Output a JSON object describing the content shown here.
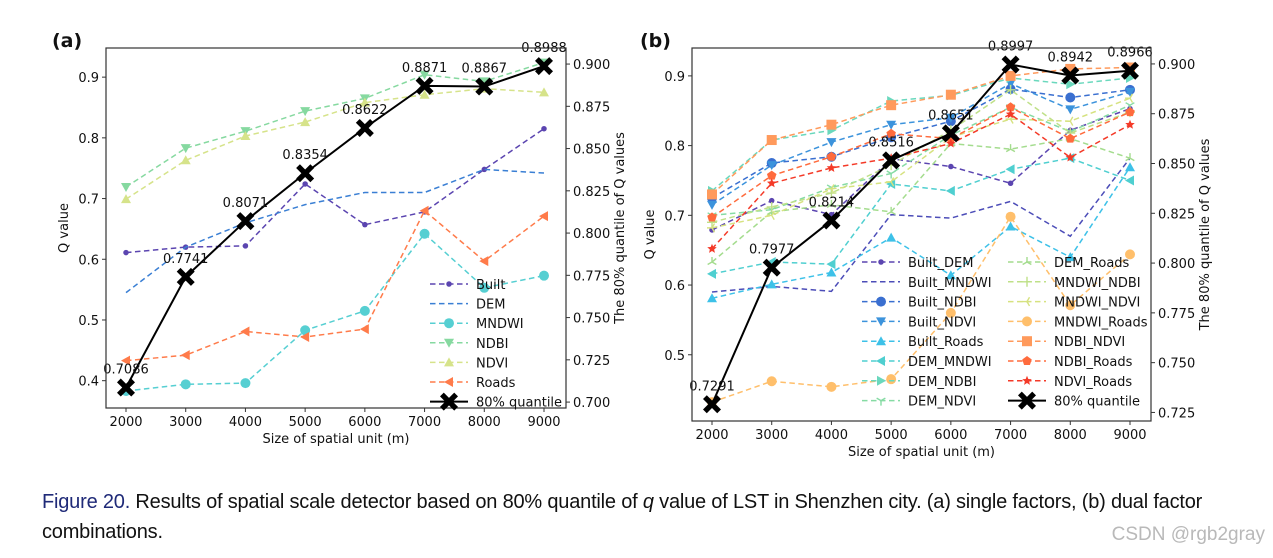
{
  "figure": {
    "caption_label": "Figure 20.",
    "caption_pre": " Results of spatial scale detector based on 80% quantile of ",
    "caption_italic": "q",
    "caption_post": " value of LST in Shenzhen city. (a) single factors, (b) dual factor combinations.",
    "watermark": "CSDN @rgb2gray"
  },
  "chart_data": [
    {
      "type": "line",
      "panel": "(a)",
      "title": "",
      "xlabel": "Size of spatial unit (m)",
      "ylabel": "Q value",
      "y2label": "The 80% quantile of Q values",
      "x": [
        2000,
        3000,
        4000,
        5000,
        6000,
        7000,
        8000,
        9000
      ],
      "xticks": [
        "2000",
        "3000",
        "4000",
        "5000",
        "6000",
        "7000",
        "8000",
        "9000"
      ],
      "ylim": [
        0.355,
        0.948
      ],
      "yticks": [
        "0.4",
        "0.5",
        "0.6",
        "0.7",
        "0.8",
        "0.9"
      ],
      "y2lim": [
        0.6965,
        0.9095
      ],
      "y2ticks": [
        "0.700",
        "0.725",
        "0.750",
        "0.775",
        "0.800",
        "0.825",
        "0.850",
        "0.875",
        "0.900"
      ],
      "legend_position": "lower-right",
      "legend_columns": 1,
      "grid": false,
      "series": [
        {
          "name": "Built",
          "color": "#5b45b0",
          "marker": "dot",
          "dash": "dashed",
          "values": [
            0.611,
            0.62,
            0.622,
            0.724,
            0.657,
            0.678,
            0.748,
            0.815
          ]
        },
        {
          "name": "DEM",
          "color": "#3a7fd4",
          "marker": "none",
          "dash": "dashed",
          "values": [
            0.545,
            0.62,
            0.66,
            0.69,
            0.71,
            0.71,
            0.748,
            0.742
          ]
        },
        {
          "name": "MNDWI",
          "color": "#56cfd2",
          "marker": "circle",
          "dash": "dashed",
          "values": [
            0.383,
            0.394,
            0.396,
            0.483,
            0.515,
            0.642,
            0.553,
            0.573
          ]
        },
        {
          "name": "NDBI",
          "color": "#86d9a0",
          "marker": "triangle-down",
          "dash": "dashed",
          "values": [
            0.719,
            0.783,
            0.811,
            0.844,
            0.865,
            0.904,
            0.893,
            0.924
          ]
        },
        {
          "name": "NDVI",
          "color": "#d6e38a",
          "marker": "triangle-up",
          "dash": "dashed",
          "values": [
            0.699,
            0.763,
            0.803,
            0.826,
            0.858,
            0.871,
            0.881,
            0.875
          ]
        },
        {
          "name": "Roads",
          "color": "#ff7b4a",
          "marker": "triangle-left",
          "dash": "dashed",
          "values": [
            0.433,
            0.442,
            0.481,
            0.472,
            0.485,
            0.68,
            0.597,
            0.671
          ]
        }
      ],
      "quantile": {
        "name": "80% quantile",
        "color": "#000000",
        "marker": "x-filled",
        "axis": "right",
        "values": [
          0.7086,
          0.7741,
          0.8071,
          0.8354,
          0.8622,
          0.8871,
          0.8867,
          0.8988
        ],
        "labels": [
          "0.7086",
          "0.7741",
          "0.8071",
          "0.8354",
          "0.8622",
          "0.8871",
          "0.8867",
          "0.8988"
        ]
      }
    },
    {
      "type": "line",
      "panel": "(b)",
      "title": "",
      "xlabel": "Size of spatial unit (m)",
      "ylabel": "Q value",
      "y2label": "The 80% quantile of Q values",
      "x": [
        2000,
        3000,
        4000,
        5000,
        6000,
        7000,
        8000,
        9000
      ],
      "xticks": [
        "2000",
        "3000",
        "4000",
        "5000",
        "6000",
        "7000",
        "8000",
        "9000"
      ],
      "ylim": [
        0.405,
        0.94
      ],
      "yticks": [
        "0.5",
        "0.6",
        "0.7",
        "0.8",
        "0.9"
      ],
      "y2lim": [
        0.7207,
        0.908
      ],
      "y2ticks": [
        "0.725",
        "0.750",
        "0.775",
        "0.800",
        "0.825",
        "0.850",
        "0.875",
        "0.900"
      ],
      "legend_position": "lower-right",
      "legend_columns": 2,
      "grid": false,
      "series": [
        {
          "name": "Built_DEM",
          "color": "#5b45b0",
          "marker": "dot",
          "dash": "dashed",
          "values": [
            0.679,
            0.721,
            0.701,
            0.781,
            0.77,
            0.746,
            0.822,
            0.853
          ]
        },
        {
          "name": "Built_MNDWI",
          "color": "#4c4db8",
          "marker": "none",
          "dash": "dashed",
          "values": [
            0.59,
            0.598,
            0.591,
            0.701,
            0.696,
            0.72,
            0.67,
            0.782
          ]
        },
        {
          "name": "Built_NDBI",
          "color": "#3a6fd0",
          "marker": "circle",
          "dash": "dashed",
          "values": [
            0.725,
            0.775,
            0.784,
            0.812,
            0.835,
            0.881,
            0.869,
            0.88
          ]
        },
        {
          "name": "Built_NDVI",
          "color": "#3c93dc",
          "marker": "triangle-down",
          "dash": "dashed",
          "values": [
            0.715,
            0.772,
            0.805,
            0.83,
            0.84,
            0.889,
            0.852,
            0.877
          ]
        },
        {
          "name": "Built_Roads",
          "color": "#3dc1e8",
          "marker": "triangle-up",
          "dash": "dashed",
          "values": [
            0.581,
            0.601,
            0.618,
            0.668,
            0.614,
            0.684,
            0.64,
            0.769
          ]
        },
        {
          "name": "DEM_MNDWI",
          "color": "#4fcfd0",
          "marker": "triangle-left",
          "dash": "dashed",
          "values": [
            0.616,
            0.633,
            0.63,
            0.745,
            0.735,
            0.766,
            0.782,
            0.75
          ]
        },
        {
          "name": "DEM_NDBI",
          "color": "#6ad8bd",
          "marker": "triangle-right",
          "dash": "dashed",
          "values": [
            0.735,
            0.808,
            0.822,
            0.864,
            0.872,
            0.897,
            0.888,
            0.897
          ]
        },
        {
          "name": "DEM_NDVI",
          "color": "#86dba4",
          "marker": "tri-down",
          "dash": "dashed",
          "values": [
            0.7,
            0.708,
            0.74,
            0.76,
            0.815,
            0.855,
            0.82,
            0.858
          ]
        },
        {
          "name": "DEM_Roads",
          "color": "#a4dc8e",
          "marker": "tri-up",
          "dash": "dashed",
          "values": [
            0.633,
            0.705,
            0.715,
            0.705,
            0.803,
            0.795,
            0.81,
            0.782
          ]
        },
        {
          "name": "MNDWI_NDBI",
          "color": "#bfe088",
          "marker": "plus",
          "dash": "dashed",
          "values": [
            0.69,
            0.712,
            0.732,
            0.772,
            0.822,
            0.88,
            0.818,
            0.848
          ]
        },
        {
          "name": "MNDWI_NDVI",
          "color": "#d6e280",
          "marker": "tri-left",
          "dash": "dashed",
          "values": [
            0.682,
            0.7,
            0.738,
            0.748,
            0.812,
            0.838,
            0.835,
            0.868
          ]
        },
        {
          "name": "MNDWI_Roads",
          "color": "#ffbf6b",
          "marker": "circle",
          "dash": "dashed",
          "values": [
            0.432,
            0.462,
            0.454,
            0.465,
            0.56,
            0.698,
            0.571,
            0.644
          ]
        },
        {
          "name": "NDBI_NDVI",
          "color": "#ff9a5c",
          "marker": "square",
          "dash": "dashed",
          "values": [
            0.73,
            0.808,
            0.83,
            0.858,
            0.873,
            0.9,
            0.91,
            0.912
          ]
        },
        {
          "name": "NDBI_Roads",
          "color": "#ff6b3d",
          "marker": "pentagon",
          "dash": "dashed",
          "values": [
            0.697,
            0.757,
            0.784,
            0.817,
            0.81,
            0.855,
            0.81,
            0.848
          ]
        },
        {
          "name": "NDVI_Roads",
          "color": "#f43a28",
          "marker": "star",
          "dash": "dashed",
          "values": [
            0.652,
            0.746,
            0.768,
            0.782,
            0.803,
            0.845,
            0.783,
            0.83
          ]
        }
      ],
      "quantile": {
        "name": "80% quantile",
        "color": "#000000",
        "marker": "x-filled",
        "axis": "right",
        "values": [
          0.7291,
          0.7977,
          0.8214,
          0.8516,
          0.8651,
          0.8997,
          0.8942,
          0.8966
        ],
        "labels": [
          "0.7291",
          "0.7977",
          "0.8214",
          "0.8516",
          "0.8651",
          "0.8997",
          "0.8942",
          "0.8966"
        ]
      }
    }
  ]
}
